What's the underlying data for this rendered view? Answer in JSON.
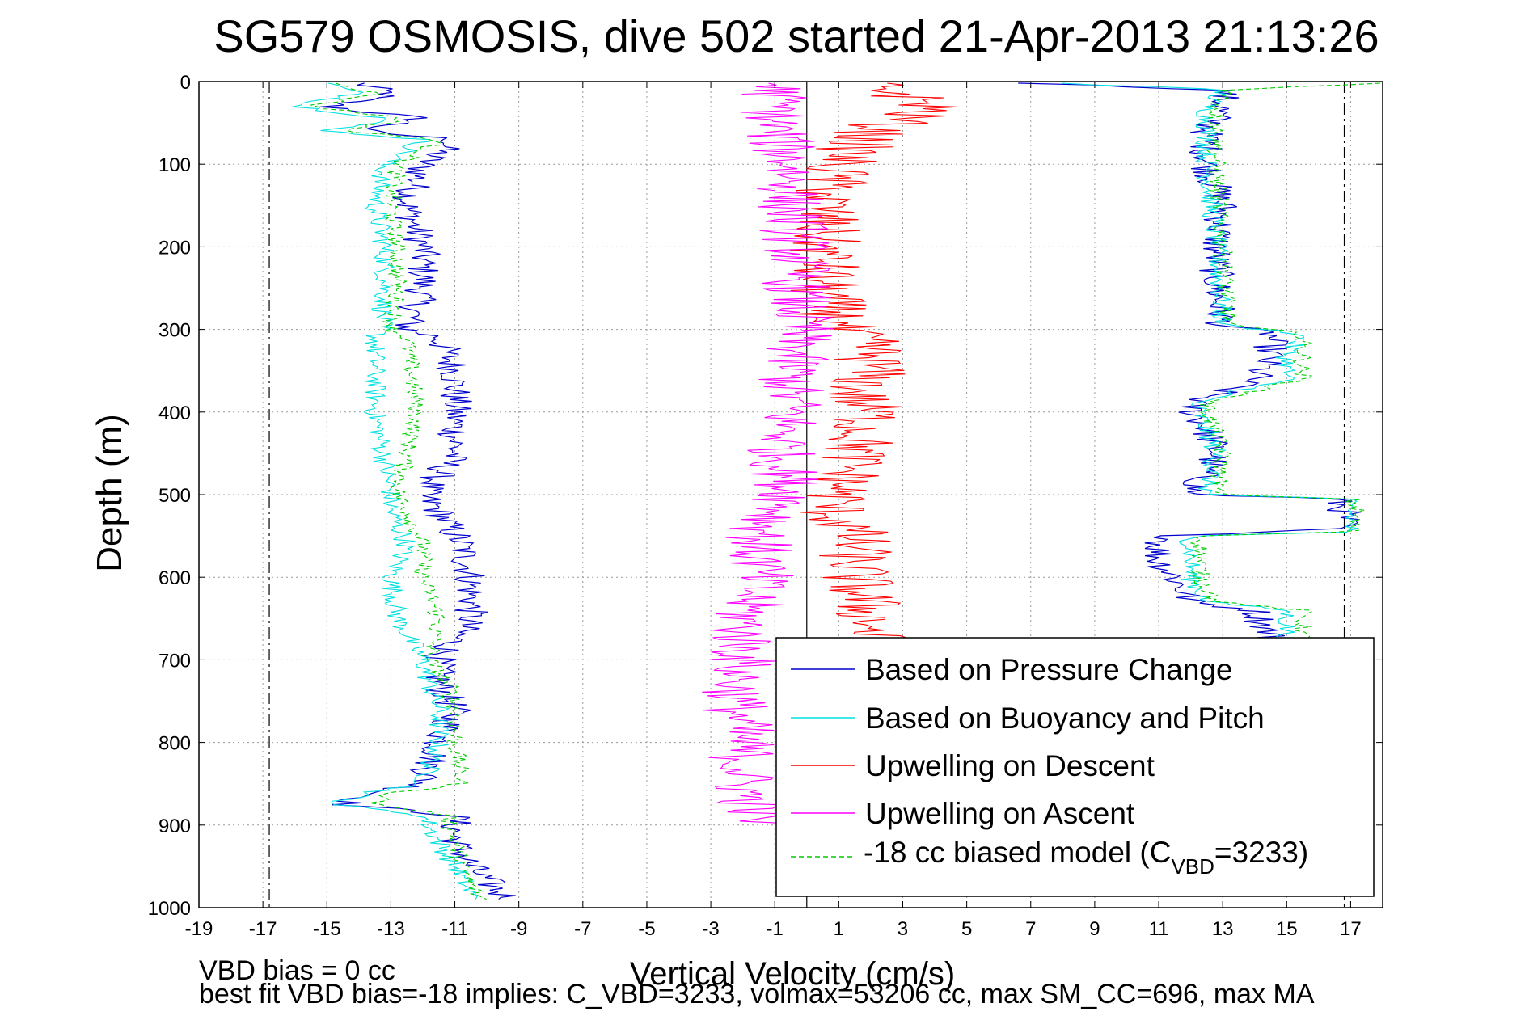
{
  "chart_data": {
    "type": "line",
    "title": "SG579 OSMOSIS, dive 502 started 21-Apr-2013 21:13:26",
    "xlabel": "Vertical Velocity (cm/s)",
    "ylabel": "Depth (m)",
    "xlim": [
      -19,
      18
    ],
    "ylim": [
      0,
      1000
    ],
    "y_reversed": true,
    "grid": true,
    "legend_position": "lower-right",
    "xticks": [
      -19,
      -17,
      -15,
      -13,
      -11,
      -9,
      -7,
      -5,
      -3,
      -1,
      1,
      3,
      5,
      7,
      9,
      11,
      13,
      15,
      17
    ],
    "yticks": [
      0,
      100,
      200,
      300,
      400,
      500,
      600,
      700,
      800,
      900,
      1000
    ],
    "reference_lines": {
      "dashdot_x": [
        -16.8,
        16.8
      ],
      "solid_x": [
        0
      ]
    },
    "legend": [
      {
        "label": "Based on Pressure Change",
        "color": "#0000cc",
        "style": "solid"
      },
      {
        "label": "Based on Buoyancy and Pitch",
        "color": "#00e0e0",
        "style": "solid"
      },
      {
        "label": "Upwelling on Descent",
        "color": "#ff0000",
        "style": "solid"
      },
      {
        "label": "Upwelling on Ascent",
        "color": "#ff00ff",
        "style": "solid"
      },
      {
        "label_prefix": "-18 cc biased model (C",
        "label_sub": "VBD",
        "label_suffix": "=3233)",
        "color": "#00cc00",
        "style": "dashed"
      }
    ],
    "series": [
      {
        "color": "#0000cc",
        "width": 1.2,
        "noise": 0.55,
        "desc": {
          "depth": [
            2,
            15,
            30,
            45,
            60,
            70,
            85,
            100,
            150,
            200,
            250,
            300,
            310,
            350,
            400,
            450,
            500,
            520,
            560,
            600,
            650,
            700,
            730,
            760,
            800,
            850,
            862,
            875,
            888,
            920,
            950,
            985,
            992
          ],
          "v": [
            -14,
            -13,
            -15,
            -12,
            -14,
            -11,
            -11.5,
            -12,
            -12.5,
            -12,
            -12,
            -12.5,
            -11.5,
            -11,
            -11,
            -11,
            -12,
            -11.5,
            -10.8,
            -10.5,
            -10.5,
            -11.5,
            -11.5,
            -11,
            -11.5,
            -12,
            -13.5,
            -14.5,
            -11,
            -11,
            -10.5,
            -9.5,
            -9
          ]
        },
        "asc": {
          "depth": [
            2,
            10,
            30,
            60,
            100,
            150,
            200,
            250,
            295,
            305,
            330,
            360,
            390,
            395,
            420,
            450,
            500,
            505,
            520,
            540,
            550,
            560,
            580,
            600,
            630,
            640,
            670,
            700
          ],
          "v": [
            7,
            13,
            13,
            12.5,
            12.5,
            13,
            12.8,
            12.8,
            13,
            14.5,
            14.5,
            14,
            12,
            12,
            12.5,
            12.8,
            12,
            16.5,
            16.8,
            16.8,
            11.5,
            11,
            11,
            11.5,
            12,
            14,
            14.5,
            14.5
          ]
        }
      },
      {
        "color": "#00e0e0",
        "width": 1.1,
        "noise": 0.35,
        "desc": {
          "depth": [
            2,
            15,
            30,
            45,
            60,
            70,
            85,
            100,
            150,
            200,
            250,
            300,
            310,
            400,
            500,
            520,
            560,
            600,
            650,
            700,
            730,
            760,
            800,
            850,
            862,
            875,
            888,
            920,
            950,
            985,
            992
          ],
          "v": [
            -15,
            -14,
            -16,
            -13,
            -15,
            -12,
            -12.5,
            -13.2,
            -13.5,
            -13.2,
            -13.2,
            -13.3,
            -13.5,
            -13.5,
            -13,
            -13,
            -12.5,
            -13,
            -12.8,
            -12,
            -11.8,
            -11.5,
            -11.5,
            -12,
            -13.8,
            -14.8,
            -12,
            -11.5,
            -11,
            -10.5,
            -10
          ]
        },
        "asc": {
          "depth": [
            2,
            10,
            30,
            100,
            200,
            295,
            305,
            330,
            360,
            390,
            395,
            450,
            500,
            505,
            520,
            545,
            550,
            560,
            600,
            630,
            640,
            670,
            700
          ],
          "v": [
            8,
            13,
            12.5,
            12.5,
            12.8,
            13,
            15.5,
            15,
            15,
            12,
            12.2,
            12.8,
            12.5,
            16.8,
            17,
            17,
            12,
            12,
            12,
            12.5,
            15,
            15,
            15
          ]
        }
      },
      {
        "color": "#00cc00",
        "width": 1.1,
        "noise": 0.3,
        "dashed": true,
        "desc": {
          "depth": [
            2,
            15,
            30,
            45,
            60,
            70,
            85,
            100,
            150,
            200,
            250,
            300,
            310,
            400,
            500,
            520,
            560,
            600,
            650,
            700,
            730,
            760,
            800,
            850,
            862,
            875,
            888,
            920,
            950,
            985,
            992
          ],
          "v": [
            -14.5,
            -13.5,
            -15.5,
            -12.5,
            -14.5,
            -11.5,
            -12,
            -12.8,
            -13,
            -12.8,
            -12.8,
            -13,
            -12.5,
            -12.2,
            -12.8,
            -12.5,
            -12,
            -12,
            -11.5,
            -11.8,
            -11.2,
            -11,
            -11,
            -10.8,
            -13,
            -13.5,
            -11.2,
            -11,
            -10.8,
            -10.3,
            -10
          ]
        },
        "asc": {
          "depth": [
            2,
            10,
            30,
            100,
            200,
            295,
            305,
            330,
            360,
            390,
            395,
            450,
            500,
            505,
            520,
            545,
            550,
            560,
            600,
            630,
            640,
            670,
            700
          ],
          "v": [
            18,
            13.2,
            12.8,
            12.8,
            13,
            13.2,
            15.5,
            15.5,
            15.5,
            12.5,
            12.5,
            13,
            12.8,
            17,
            17.2,
            17,
            12.3,
            12.3,
            12.3,
            12.8,
            15.5,
            15.5,
            15.5
          ]
        }
      },
      {
        "color": "#ff0000",
        "width": 1.1,
        "noise": 1.2,
        "desc": {
          "depth": [
            2,
            30,
            60,
            100,
            150,
            200,
            250,
            300,
            320,
            350,
            380,
            400,
            450,
            500,
            520,
            550,
            600,
            650,
            700
          ],
          "v": [
            2,
            4,
            2,
            1,
            0.5,
            0.5,
            0.5,
            1,
            2,
            2,
            1.5,
            2,
            1.5,
            1,
            0.8,
            1.5,
            1.5,
            2,
            2
          ]
        }
      },
      {
        "color": "#ff00ff",
        "width": 1.1,
        "noise": 1.1,
        "desc": {
          "depth": [
            2,
            30,
            60,
            100,
            150,
            200,
            250,
            300,
            350,
            400,
            450,
            500,
            550,
            600,
            650,
            700,
            730,
            760,
            800,
            850,
            900
          ],
          "v": [
            -1,
            -1,
            -1,
            -0.5,
            -0.5,
            -0.3,
            -0.3,
            -0.2,
            -0.5,
            -0.5,
            -0.8,
            -0.5,
            -1.5,
            -1.5,
            -2,
            -2,
            -2.2,
            -2.2,
            -2,
            -2,
            -1.5
          ]
        }
      }
    ]
  },
  "footer": {
    "line1": "VBD bias = 0 cc",
    "line2": "best fit VBD bias=-18 implies: C_VBD=3233, volmax=53206 cc, max SM_CC=696, max MA"
  }
}
